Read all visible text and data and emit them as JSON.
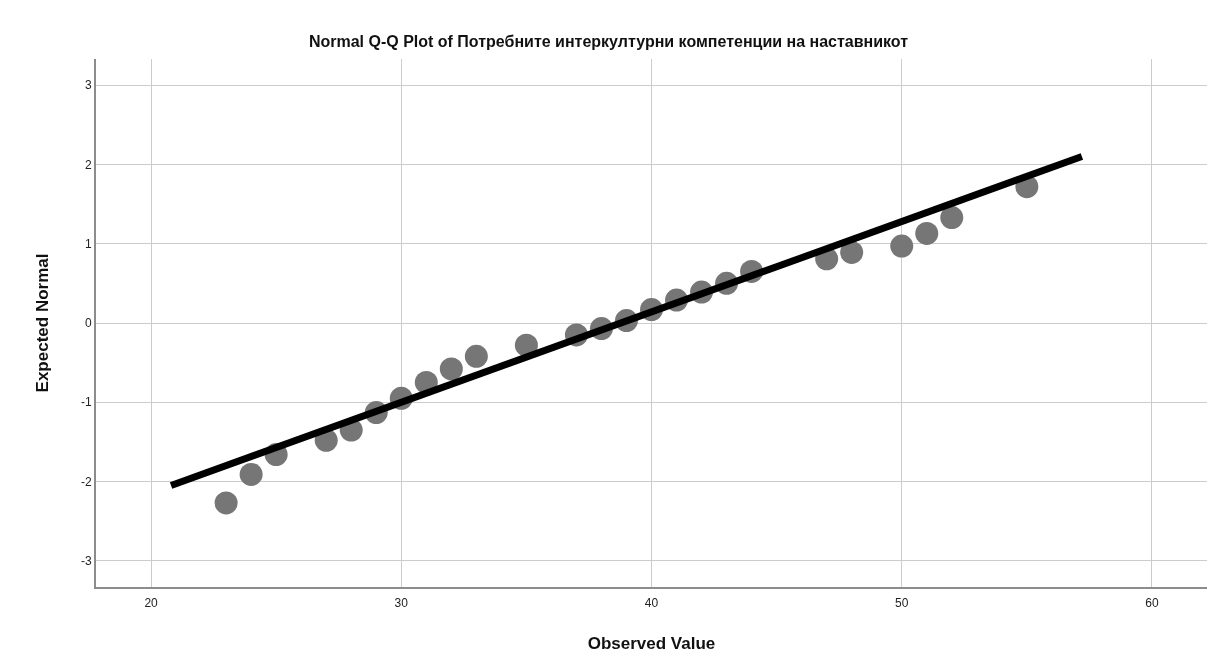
{
  "chart_data": {
    "type": "scatter",
    "title": "Normal Q-Q Plot of Потребните интеркултурни компетенции на наставникот",
    "xlabel": "Observed Value",
    "ylabel": "Expected Normal",
    "series": [
      {
        "color": "#767676",
        "x": [
          23,
          24,
          25,
          27,
          28,
          29,
          30,
          31,
          32,
          33,
          35,
          37,
          38,
          39,
          40,
          41,
          42,
          43,
          44,
          47,
          48,
          50,
          51,
          52,
          55
        ],
        "values": [
          -2.27,
          -1.91,
          -1.66,
          -1.48,
          -1.35,
          -1.13,
          -0.95,
          -0.75,
          -0.58,
          -0.42,
          -0.28,
          -0.15,
          -0.07,
          0.03,
          0.17,
          0.29,
          0.39,
          0.5,
          0.65,
          0.81,
          0.89,
          0.97,
          1.13,
          1.33,
          1.72
        ]
      },
      {
        "type": "line",
        "color": "#000000",
        "marker": "none",
        "x": [
          20.8,
          57.2
        ],
        "values": [
          -2.05,
          2.1
        ]
      }
    ],
    "xlim": [
      17.8,
      62.2
    ],
    "ylim": [
      -3.33,
      3.33
    ],
    "xticks": [
      20,
      30,
      40,
      50,
      60
    ],
    "yticks": [
      -3,
      -2,
      -1,
      0,
      1,
      2,
      3
    ],
    "grid": true,
    "marker": "circle"
  }
}
